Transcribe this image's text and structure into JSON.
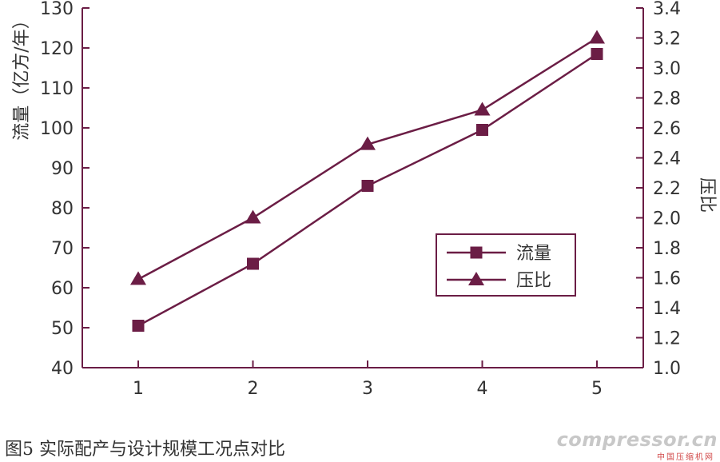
{
  "chart_data": {
    "type": "line",
    "categories": [
      "1",
      "2",
      "3",
      "4",
      "5"
    ],
    "series": [
      {
        "name": "流量",
        "axis": "left",
        "marker": "square",
        "values": [
          50.5,
          66,
          85.5,
          99.5,
          118.5
        ]
      },
      {
        "name": "压比",
        "axis": "right",
        "marker": "triangle",
        "values": [
          1.59,
          2.0,
          2.49,
          2.72,
          3.2
        ]
      }
    ],
    "ylabel": "流量（亿方/年）",
    "ylabel_right": "压比",
    "ylim": [
      40,
      130
    ],
    "yticks": [
      "40",
      "50",
      "60",
      "70",
      "80",
      "90",
      "100",
      "110",
      "120",
      "130"
    ],
    "ylim_right": [
      1.0,
      3.4
    ],
    "yticks_right": [
      "1.0",
      "1.2",
      "1.4",
      "1.6",
      "1.8",
      "2.0",
      "2.2",
      "2.4",
      "2.6",
      "2.8",
      "3.0",
      "3.2",
      "3.4"
    ],
    "legend_position": "right-center",
    "grid": false,
    "color": "#6b1d45"
  },
  "caption": "图5  实际配产与设计规模工况点对比",
  "watermark": {
    "main": "compressor.cn",
    "sub": "中国压缩机网"
  }
}
